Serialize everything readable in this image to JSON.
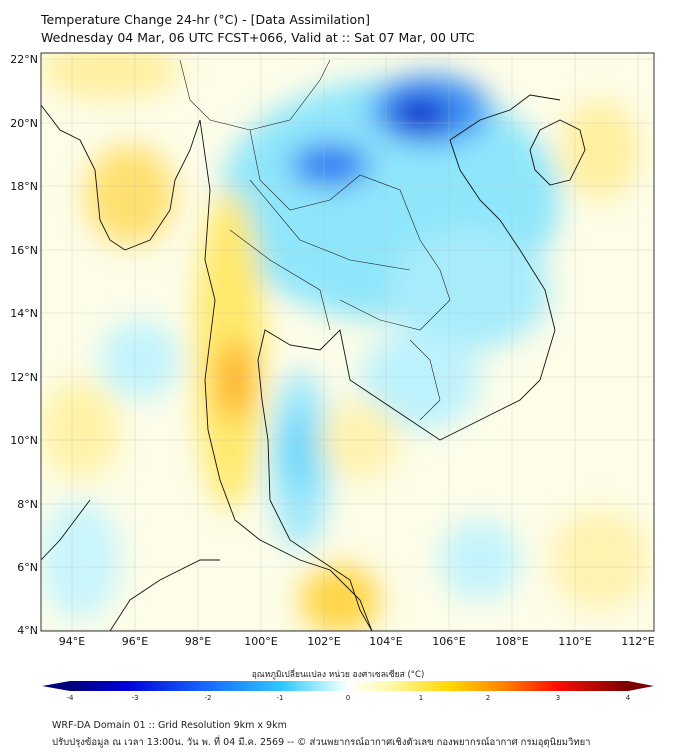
{
  "header": {
    "title": "Temperature Change 24-hr (°C) - [Data Assimilation]",
    "subtitle": "Wednesday 04 Mar, 06 UTC FCST+066, Valid at :: Sat 07 Mar, 00 UTC"
  },
  "map": {
    "lon_labels": [
      "94°E",
      "96°E",
      "98°E",
      "100°E",
      "102°E",
      "104°E",
      "106°E",
      "108°E",
      "110°E",
      "112°E"
    ],
    "lat_labels": [
      "22°N",
      "20°N",
      "18°N",
      "16°N",
      "14°N",
      "12°N",
      "10°N",
      "8°N",
      "6°N",
      "4°N"
    ],
    "extent": {
      "lon": [
        93.0,
        112.5
      ],
      "lat": [
        4.0,
        22.2
      ]
    }
  },
  "colorbar": {
    "title": "อุณหภูมิเปลี่ยนแปลง หน่วย องศาเซลเซียส (°C)",
    "ticks": [
      "-4",
      "-3",
      "-2",
      "-1",
      "0",
      "1",
      "2",
      "3",
      "4"
    ],
    "range": [
      -4,
      4
    ],
    "colors": [
      "#00007a",
      "#0000d8",
      "#1a6cff",
      "#2ec8ff",
      "#c8f8ff",
      "#ffffff",
      "#fff8a0",
      "#ffd800",
      "#ff8000",
      "#ff1000",
      "#7a0000"
    ]
  },
  "footer": {
    "line1": "WRF-DA Domain 01 :: Grid Resolution 9km x 9km",
    "line2": "ปรับปรุงข้อมูล ณ เวลา 13:00น. วัน พ. ที่ 04 มี.ค. 2569 -- © ส่วนพยากรณ์อากาศเชิงตัวเลข กองพยากรณ์อากาศ กรมอุตุนิยมวิทยา"
  }
}
